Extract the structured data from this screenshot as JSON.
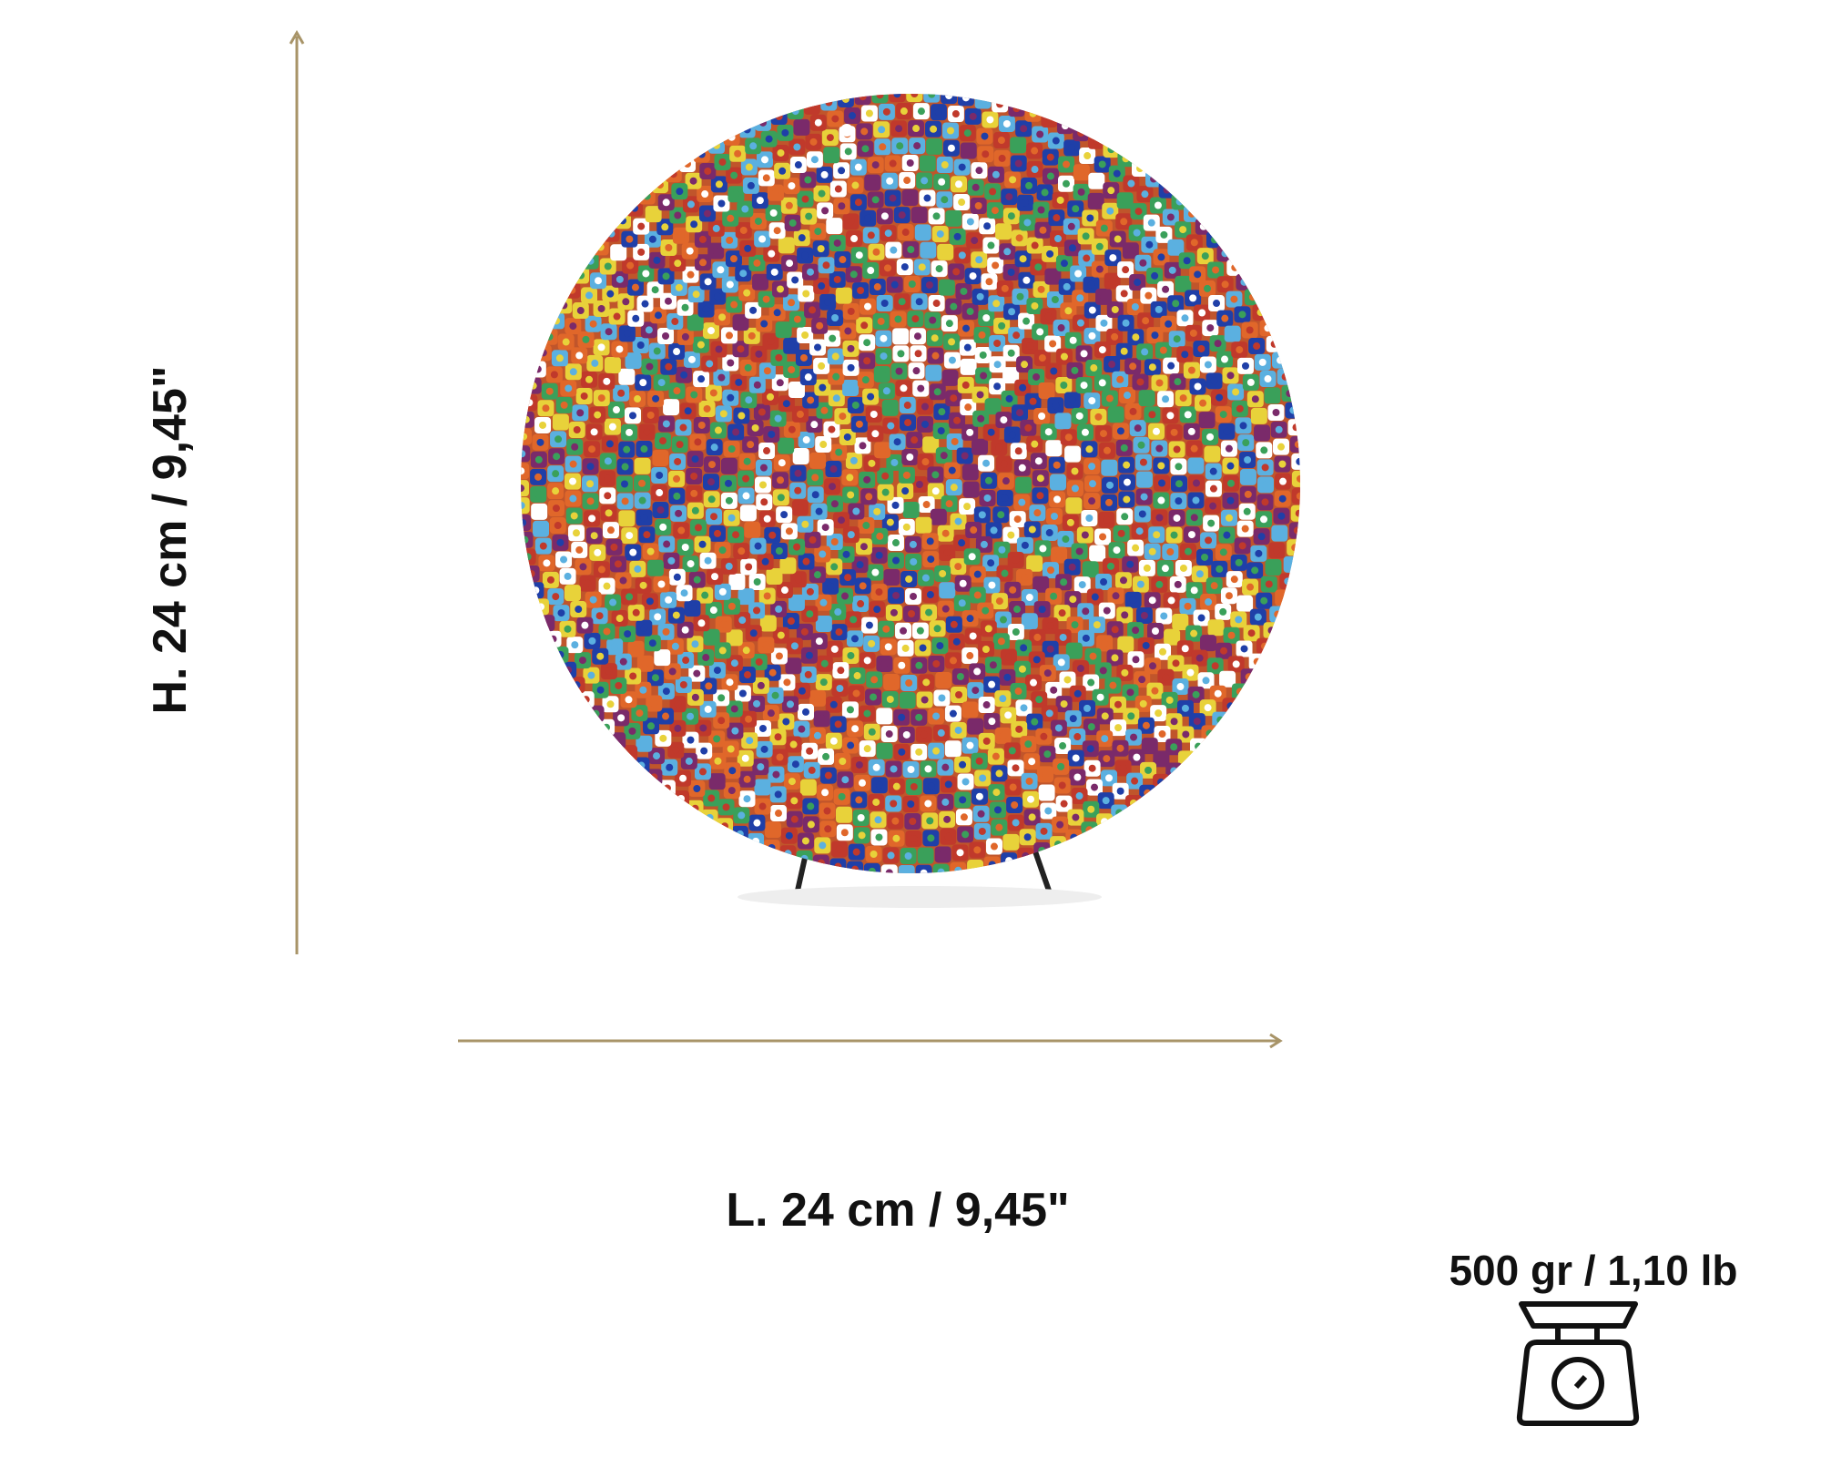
{
  "dimensions": {
    "height_label": "H. 24 cm / 9,45\"",
    "length_label": "L. 24 cm / 9,45\"",
    "weight_label": "500 gr / 1,10 lb"
  },
  "colors": {
    "arrow": "#a89468",
    "text": "#111111",
    "mosaic": [
      "#c0392b",
      "#1f3fa8",
      "#e8d23a",
      "#5bb0e0",
      "#e0672a",
      "#3aa05a",
      "#ffffff",
      "#7a2a6a"
    ]
  },
  "icons": {
    "weight": "kitchen-scale-icon"
  }
}
